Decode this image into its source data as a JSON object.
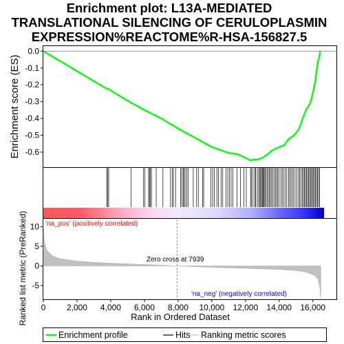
{
  "chart_data": {
    "type": "line",
    "title_lines": [
      "Enrichment plot: L13A-MEDIATED",
      "TRANSLATIONAL SILENCING OF CERULOPLASMIN",
      "EXPRESSION%REACTOME%R-HSA-156827.5"
    ],
    "es_panel": {
      "ylabel": "Enrichment score (ES)",
      "ylim": [
        -0.69,
        0.03
      ],
      "yticks": [
        0.0,
        -0.1,
        -0.2,
        -0.3,
        -0.4,
        -0.5,
        -0.6
      ],
      "ytick_labels": [
        "0.0",
        "-0.1",
        "-0.2",
        "-0.3",
        "-0.4",
        "-0.5",
        "-0.6"
      ],
      "series": [
        {
          "name": "Enrichment profile",
          "color": "#00ff00",
          "points": [
            [
              0,
              0
            ],
            [
              3700,
              -0.22
            ],
            [
              3850,
              -0.225
            ],
            [
              3950,
              -0.23
            ],
            [
              5000,
              -0.295
            ],
            [
              6000,
              -0.35
            ],
            [
              7000,
              -0.4
            ],
            [
              8000,
              -0.46
            ],
            [
              9000,
              -0.515
            ],
            [
              10000,
              -0.57
            ],
            [
              11000,
              -0.605
            ],
            [
              11600,
              -0.615
            ],
            [
              12000,
              -0.635
            ],
            [
              12300,
              -0.65
            ],
            [
              12500,
              -0.645
            ],
            [
              12700,
              -0.645
            ],
            [
              13000,
              -0.635
            ],
            [
              13300,
              -0.615
            ],
            [
              13600,
              -0.59
            ],
            [
              14000,
              -0.57
            ],
            [
              14300,
              -0.56
            ],
            [
              14600,
              -0.52
            ],
            [
              14900,
              -0.5
            ],
            [
              15200,
              -0.46
            ],
            [
              15400,
              -0.4
            ],
            [
              15600,
              -0.35
            ],
            [
              15850,
              -0.31
            ],
            [
              16000,
              -0.25
            ],
            [
              16150,
              -0.18
            ],
            [
              16250,
              -0.1
            ],
            [
              16300,
              -0.065
            ],
            [
              16380,
              -0.04
            ],
            [
              16430,
              0.0
            ]
          ]
        }
      ]
    },
    "hits_x": [
      3760,
      3820,
      3880,
      5200,
      5950,
      6020,
      6250,
      6300,
      6350,
      6420,
      6700,
      7100,
      7550,
      7650,
      7720,
      7850,
      8150,
      8220,
      8300,
      8360,
      8420,
      8520,
      8600,
      8900,
      9100,
      9200,
      9450,
      9520,
      9950,
      10050,
      10150,
      10300,
      10400,
      10550,
      10650,
      10850,
      10950,
      11050,
      11150,
      11250,
      11500,
      11700,
      11900,
      12050,
      12300,
      12350,
      12450,
      12550,
      12600,
      12700,
      12780,
      12850,
      12900,
      12950,
      13000,
      13050,
      13100,
      13150,
      13200,
      13280,
      13350,
      13420,
      13480,
      13550,
      13620,
      13700,
      13780,
      13850,
      13920,
      14000,
      14100,
      14180,
      14260,
      14350,
      14450,
      14550,
      14620,
      14700,
      14780,
      14860,
      14950,
      15050,
      15150,
      15220,
      15300,
      15380,
      15440,
      15500,
      15560,
      15620,
      15680,
      15740,
      15800,
      15860,
      15920,
      15980,
      16040,
      16100,
      16160,
      16220,
      16280,
      16340,
      16400
    ],
    "ranked_panel": {
      "ylabel": "Ranked list metric (PreRanked)",
      "ylim": [
        -8.5,
        12
      ],
      "yticks": [
        10,
        5,
        0,
        -5
      ],
      "ytick_labels": [
        "10",
        "5",
        "0",
        "-5"
      ],
      "points": [
        [
          0,
          10.5
        ],
        [
          60,
          6
        ],
        [
          200,
          4
        ],
        [
          500,
          2.6
        ],
        [
          1000,
          1.8
        ],
        [
          2000,
          1.2
        ],
        [
          3000,
          0.9
        ],
        [
          4000,
          0.7
        ],
        [
          5000,
          0.5
        ],
        [
          6000,
          0.35
        ],
        [
          7000,
          0.18
        ],
        [
          7939,
          0
        ],
        [
          9000,
          -0.2
        ],
        [
          10000,
          -0.35
        ],
        [
          11000,
          -0.5
        ],
        [
          12000,
          -0.6
        ],
        [
          13000,
          -0.75
        ],
        [
          14000,
          -0.9
        ],
        [
          14800,
          -1.1
        ],
        [
          15400,
          -1.4
        ],
        [
          15800,
          -1.8
        ],
        [
          16100,
          -2.4
        ],
        [
          16300,
          -3.3
        ],
        [
          16420,
          -5.5
        ],
        [
          16470,
          -8.2
        ]
      ]
    },
    "zero_cross_label": "Zero cross at 7939",
    "zero_cross_x": 7939,
    "pos_label": "'na_pos' (positively correlated)",
    "neg_label": "'na_neg' (negatively correlated)",
    "pos_color": "#ff0000",
    "neg_color": "#0000ff",
    "x": {
      "label": "Rank in Ordered Dataset",
      "lim": [
        0,
        17400
      ],
      "data_max": 16480,
      "ticks": [
        0,
        2000,
        4000,
        6000,
        8000,
        10000,
        12000,
        14000,
        16000
      ],
      "tick_labels": [
        "0",
        "2,000",
        "4,000",
        "6,000",
        "8,000",
        "10,000",
        "12,000",
        "14,000",
        "16,000"
      ]
    },
    "legend": {
      "position": "bottom",
      "entries": [
        "Enrichment profile",
        "Hits",
        "Ranking metric scores"
      ]
    }
  }
}
